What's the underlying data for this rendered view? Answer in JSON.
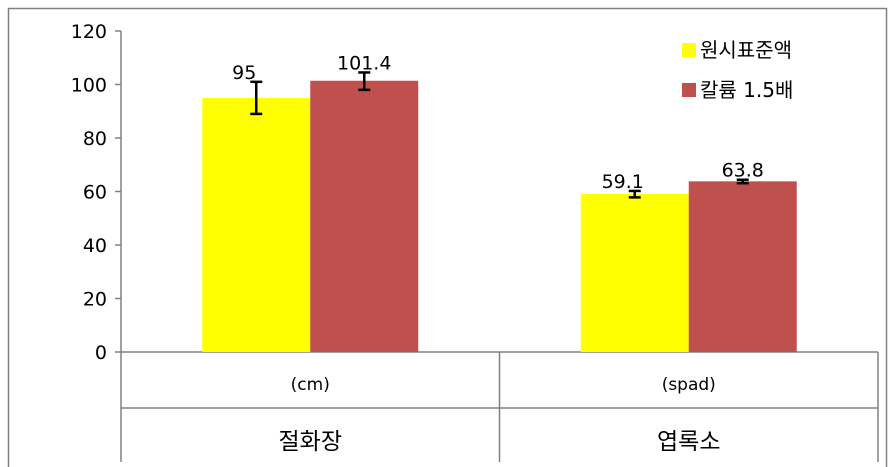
{
  "chart_data": {
    "type": "bar",
    "categories": [
      "절화장",
      "엽록소"
    ],
    "units": [
      "(cm)",
      "(spad)"
    ],
    "series": [
      {
        "name": "원시표준액",
        "color": "#FFFF00",
        "values": [
          95,
          59.1
        ],
        "err_low": [
          89,
          57.8
        ],
        "err_high": [
          101,
          60.2
        ],
        "labels": [
          "95",
          "59.1"
        ]
      },
      {
        "name": "칼륨 1.5배",
        "color": "#C0504D",
        "values": [
          101.4,
          63.8
        ],
        "err_low": [
          98,
          63.1
        ],
        "err_high": [
          104.5,
          64.4
        ],
        "labels": [
          "101.4",
          "63.8"
        ]
      }
    ],
    "ylim": [
      0,
      120
    ],
    "yticks": [
      0,
      20,
      40,
      60,
      80,
      100,
      120
    ],
    "legend_position": "top-right",
    "grid": false
  }
}
